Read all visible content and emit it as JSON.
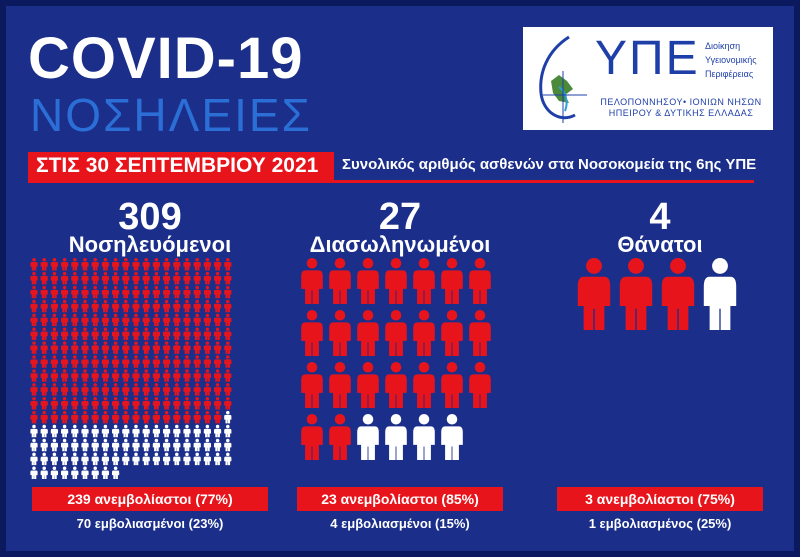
{
  "header": {
    "title": "COVID-19",
    "subtitle": "ΝΟΣΗΛΕΙΕΣ"
  },
  "logo": {
    "acronym": "ΥΠΕ",
    "side_lines": [
      "Διοίκηση",
      "Υγειονομικής",
      "Περιφέρειας"
    ],
    "region_line1": "ΠΕΛΟΠΟΝΝΗΣΟΥ• ΙΟΝΙΩΝ ΝΗΣΩΝ",
    "region_line2": "ΗΠΕΙΡΟΥ & ΔΥΤΙΚΗΣ ΕΛΛΑΔΑΣ"
  },
  "date_row": {
    "date": "ΣΤΙΣ 30 ΣΕΠΤΕΜΒΡΙΟΥ 2021",
    "description": "Συνολικός αριθμός ασθενών στα Νοσοκομεία της 6ης ΥΠΕ"
  },
  "columns": [
    {
      "total": "309",
      "label": "Νοσηλευόμενοι",
      "total_count": 309,
      "unvaccinated_count": 239,
      "unvaccinated_text": "239 ανεμβολίαστοι (77%)",
      "vaccinated_text": "70 εμβολιασμένοι (23%)"
    },
    {
      "total": "27",
      "label": "Διασωληνωμένοι",
      "total_count": 27,
      "unvaccinated_count": 23,
      "unvaccinated_text": "23 ανεμβολίαστοι (85%)",
      "vaccinated_text": "4 εμβολιασμένοι (15%)"
    },
    {
      "total": "4",
      "label": "Θάνατοι",
      "total_count": 4,
      "unvaccinated_count": 3,
      "unvaccinated_text": "3 ανεμβολίαστοι (75%)",
      "vaccinated_text": "1 εμβολιασμένος (25%)"
    }
  ],
  "colors": {
    "background": "#1a2e8a",
    "unvaccinated": "#e8141c",
    "vaccinated": "#ffffff",
    "accent_blue": "#2b6fd6"
  }
}
